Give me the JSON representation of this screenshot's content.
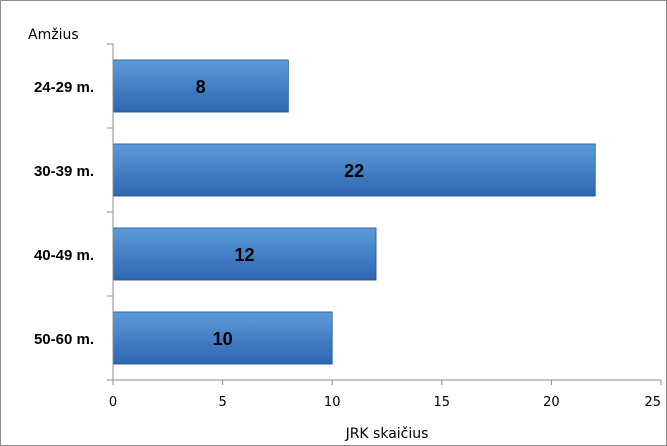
{
  "chart_data": {
    "type": "bar",
    "orientation": "horizontal",
    "categories": [
      "24-29 m.",
      "30-39 m.",
      "40-49 m.",
      "50-60 m."
    ],
    "values": [
      8,
      22,
      12,
      10
    ],
    "data_labels": [
      "8",
      "22",
      "12",
      "10"
    ],
    "title": "",
    "xlabel": "JRK skaičius",
    "ylabel": "Amžius",
    "xlim": [
      0,
      25
    ],
    "x_ticks": [
      0,
      5,
      10,
      15,
      20,
      25
    ],
    "x_tick_labels": [
      "0",
      "5",
      "10",
      "15",
      "20",
      "25"
    ],
    "grid": false,
    "legend": "none",
    "colors": {
      "bar_top": "#5b9ad8",
      "bar_bottom": "#2e67b1",
      "bar_edge": "#24568f",
      "axis": "#8c8c8c"
    }
  }
}
